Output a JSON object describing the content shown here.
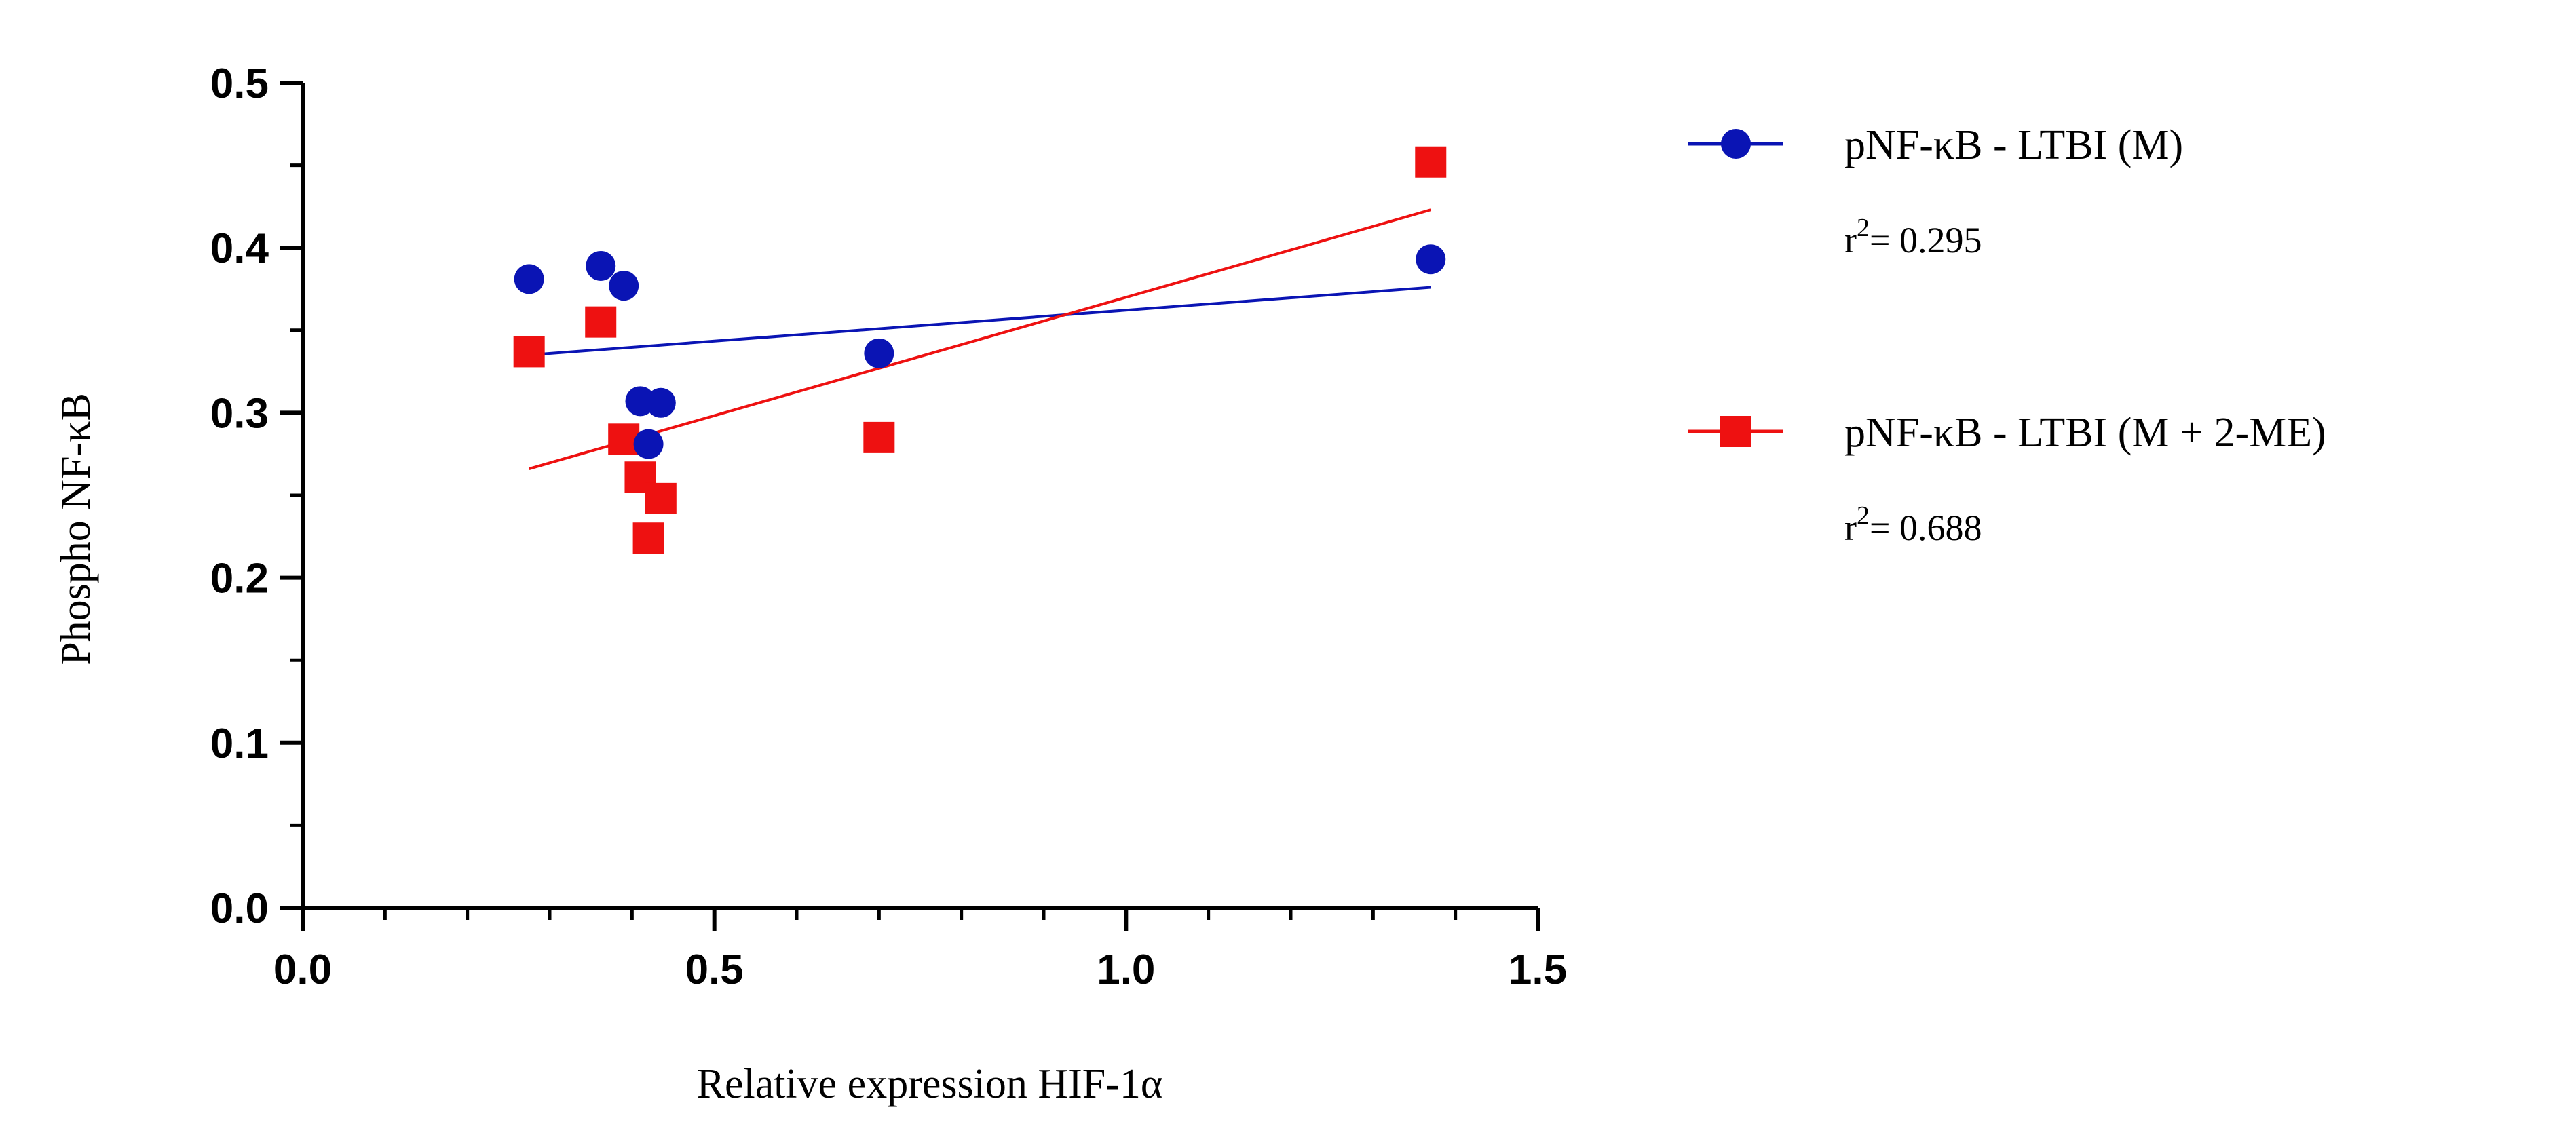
{
  "chart_data": {
    "type": "scatter",
    "xlabel": "Relative expression HIF-1α",
    "ylabel": "Phospho NF-κB",
    "xlim": [
      0.0,
      1.5
    ],
    "ylim": [
      0.0,
      0.5
    ],
    "xticks": [
      "0.0",
      "0.5",
      "1.0",
      "1.5"
    ],
    "yticks": [
      "0.0",
      "0.1",
      "0.2",
      "0.3",
      "0.4",
      "0.5"
    ],
    "grid": false,
    "legend_position": "right",
    "series": [
      {
        "name": "pNF-κB - LTBI (M)",
        "marker": "circle",
        "color": "#0a14b4",
        "r2_prefix": "r",
        "r2_sup": "2",
        "r2_value": "= 0.295",
        "points": [
          {
            "x": 0.275,
            "y": 0.381
          },
          {
            "x": 0.362,
            "y": 0.389
          },
          {
            "x": 0.39,
            "y": 0.377
          },
          {
            "x": 0.41,
            "y": 0.307
          },
          {
            "x": 0.435,
            "y": 0.306
          },
          {
            "x": 0.42,
            "y": 0.281
          },
          {
            "x": 0.7,
            "y": 0.336
          },
          {
            "x": 1.37,
            "y": 0.393
          }
        ],
        "fit": {
          "x1": 0.275,
          "y1": 0.335,
          "x2": 1.37,
          "y2": 0.376
        }
      },
      {
        "name": "pNF-κB - LTBI (M + 2-ME)",
        "marker": "square",
        "color": "#ee1111",
        "r2_prefix": "r",
        "r2_sup": "2",
        "r2_value": "= 0.688",
        "points": [
          {
            "x": 0.275,
            "y": 0.337
          },
          {
            "x": 0.362,
            "y": 0.355
          },
          {
            "x": 0.39,
            "y": 0.284
          },
          {
            "x": 0.41,
            "y": 0.261
          },
          {
            "x": 0.435,
            "y": 0.248
          },
          {
            "x": 0.42,
            "y": 0.224
          },
          {
            "x": 0.7,
            "y": 0.285
          },
          {
            "x": 1.37,
            "y": 0.452
          }
        ],
        "fit": {
          "x1": 0.275,
          "y1": 0.266,
          "x2": 1.37,
          "y2": 0.423
        }
      }
    ]
  }
}
